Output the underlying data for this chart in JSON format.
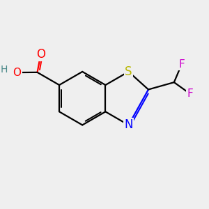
{
  "background_color": "#efefef",
  "bond_color": "#000000",
  "bond_width": 1.6,
  "atom_colors": {
    "S": "#b8b800",
    "N": "#0000ff",
    "O": "#ff0000",
    "H": "#4a8888",
    "F": "#cc00cc",
    "C": "#000000"
  },
  "font_size": 11,
  "fig_width": 3.0,
  "fig_height": 3.0,
  "dpi": 100,
  "xlim": [
    0,
    10
  ],
  "ylim": [
    0,
    10
  ],
  "bl": 1.3
}
